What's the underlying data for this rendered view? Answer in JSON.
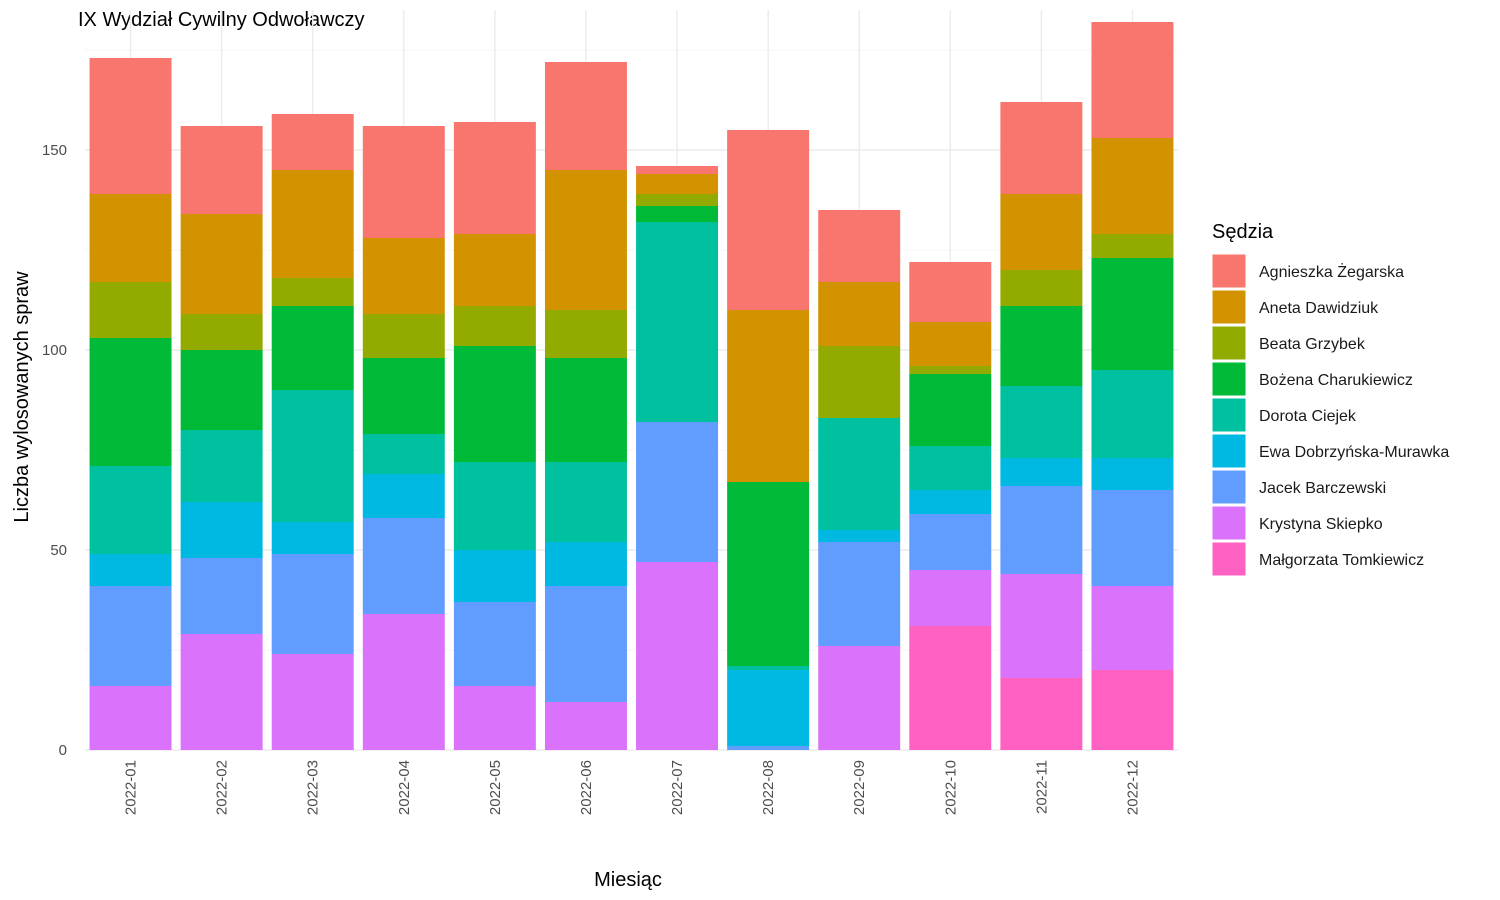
{
  "chart_data": {
    "type": "bar",
    "stacked": true,
    "title": "IX Wydział Cywilny Odwoławczy",
    "xlabel": "Miesiąc",
    "ylabel": "Liczba wylosowanych spraw",
    "ylim": [
      0,
      185
    ],
    "yticks": [
      0,
      50,
      100,
      150
    ],
    "grid": true,
    "legend": {
      "title": "Sędzia",
      "position": "right"
    },
    "categories": [
      "2022-01",
      "2022-02",
      "2022-03",
      "2022-04",
      "2022-05",
      "2022-06",
      "2022-07",
      "2022-08",
      "2022-09",
      "2022-10",
      "2022-11",
      "2022-12"
    ],
    "series": [
      {
        "name": "Agnieszka Żegarska",
        "color": "#F8766D",
        "values": [
          34,
          22,
          14,
          28,
          28,
          27,
          2,
          45,
          18,
          15,
          23,
          29
        ]
      },
      {
        "name": "Aneta Dawidziuk",
        "color": "#D39200",
        "values": [
          22,
          25,
          27,
          19,
          18,
          35,
          5,
          43,
          16,
          11,
          19,
          24
        ]
      },
      {
        "name": "Beata Grzybek",
        "color": "#93AA00",
        "values": [
          14,
          9,
          7,
          11,
          10,
          12,
          3,
          0,
          18,
          2,
          9,
          6
        ]
      },
      {
        "name": "Bożena Charukiewicz",
        "color": "#00BA38",
        "values": [
          32,
          20,
          21,
          19,
          29,
          26,
          4,
          46,
          0,
          18,
          20,
          28
        ]
      },
      {
        "name": "Dorota Ciejek",
        "color": "#00C19F",
        "values": [
          22,
          18,
          33,
          10,
          22,
          20,
          50,
          1,
          28,
          11,
          18,
          22
        ]
      },
      {
        "name": "Ewa Dobrzyńska-Murawka",
        "color": "#00B9E3",
        "values": [
          8,
          14,
          8,
          11,
          13,
          11,
          0,
          19,
          3,
          6,
          7,
          8
        ]
      },
      {
        "name": "Jacek Barczewski",
        "color": "#619CFF",
        "values": [
          25,
          19,
          25,
          24,
          21,
          29,
          35,
          1,
          26,
          14,
          22,
          24
        ]
      },
      {
        "name": "Krystyna Skiepko",
        "color": "#DB72FB",
        "values": [
          16,
          29,
          24,
          34,
          16,
          12,
          47,
          0,
          26,
          14,
          26,
          21
        ]
      },
      {
        "name": "Małgorzata Tomkiewicz",
        "color": "#FF61C3",
        "values": [
          0,
          0,
          0,
          0,
          0,
          0,
          0,
          0,
          0,
          31,
          18,
          20
        ]
      }
    ]
  }
}
